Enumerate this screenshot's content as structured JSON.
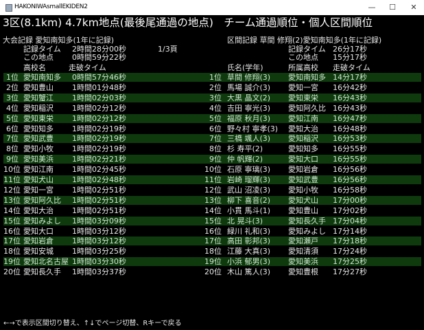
{
  "window": {
    "title": "HAKONIWAsmallEKIDEN2",
    "minimize": "—",
    "maximize": "☐",
    "close": "✕"
  },
  "heading": "3区(8.1km) 4.7km地点(最後尾通過の地点)　チーム通過順位・個人区間順位",
  "meet_record": {
    "label": "大会記録 愛知南知多(1年に記録)",
    "time_label": "記録タイム",
    "time": "2時間28分00秒",
    "point_label": "この地点",
    "point_time": "0時間59分22秒"
  },
  "page": "1/3頁",
  "section_record": {
    "label": "区間記録 草間 修翔(2)愛知南知多(1年に記録)",
    "time_label": "記録タイム",
    "time": "26分17秒",
    "point_label": "この地点",
    "point_time": "15分17秒"
  },
  "headers": {
    "school": "高校名",
    "team_time": "走破タイム",
    "name": "氏名(学年)",
    "affiliation": "所属高校",
    "ind_time": "走破タイム"
  },
  "team_rows": [
    [
      "1位",
      "愛知南知多",
      "0時間57分46秒"
    ],
    [
      "2位",
      "愛知豊山",
      "1時間01分48秒"
    ],
    [
      "3位",
      "愛知蟹江",
      "1時間02分03秒"
    ],
    [
      "4位",
      "愛知稲沢",
      "1時間02分12秒"
    ],
    [
      "5位",
      "愛知東栄",
      "1時間02分12秒"
    ],
    [
      "6位",
      "愛知知多",
      "1時間02分19秒"
    ],
    [
      "7位",
      "愛知武豊",
      "1時間02分19秒"
    ],
    [
      "8位",
      "愛知小牧",
      "1時間02分19秒"
    ],
    [
      "9位",
      "愛知美浜",
      "1時間02分21秒"
    ],
    [
      "10位",
      "愛知江南",
      "1時間02分45秒"
    ],
    [
      "11位",
      "愛知犬山",
      "1時間02分48秒"
    ],
    [
      "12位",
      "愛知一宮",
      "1時間02分51秒"
    ],
    [
      "13位",
      "愛知阿久比",
      "1時間02分51秒"
    ],
    [
      "14位",
      "愛知大治",
      "1時間02分51秒"
    ],
    [
      "15位",
      "愛知みよし",
      "1時間03分09秒"
    ],
    [
      "16位",
      "愛知大口",
      "1時間03分12秒"
    ],
    [
      "17位",
      "愛知岩倉",
      "1時間03分12秒"
    ],
    [
      "18位",
      "愛知安城",
      "1時間03分25秒"
    ],
    [
      "19位",
      "愛知北名古屋",
      "1時間03分30秒"
    ],
    [
      "20位",
      "愛知長久手",
      "1時間03分37秒"
    ]
  ],
  "individual_rows": [
    [
      "1位",
      "草間 修翔(3)",
      "愛知南知多",
      "14分17秒"
    ],
    [
      "2位",
      "馬場 誠介(3)",
      "愛知一宮",
      "16分42秒"
    ],
    [
      "3位",
      "大黒 晶文(2)",
      "愛知東栄",
      "16分43秒"
    ],
    [
      "4位",
      "吉田 寧光(3)",
      "愛知阿久比",
      "16分43秒"
    ],
    [
      "5位",
      "福原 秋月(3)",
      "愛知江南",
      "16分47秒"
    ],
    [
      "6位",
      "野々村 寧孝(3)",
      "愛知大治",
      "16分48秒"
    ],
    [
      "7位",
      "三橋 颯人(3)",
      "愛知稲沢",
      "16分53秒"
    ],
    [
      "8位",
      "杉 寿平(2)",
      "愛知知多",
      "16分55秒"
    ],
    [
      "9位",
      "仲 帆輝(2)",
      "愛知大口",
      "16分55秒"
    ],
    [
      "10位",
      "石原 寧璃(3)",
      "愛知岩倉",
      "16分56秒"
    ],
    [
      "11位",
      "岩崎 瑠輝(3)",
      "愛知武豊",
      "16分56秒"
    ],
    [
      "12位",
      "武山 沼凌(3)",
      "愛知小牧",
      "16分58秒"
    ],
    [
      "13位",
      "柳下 喜音(2)",
      "愛知犬山",
      "17分00秒"
    ],
    [
      "14位",
      "小貫 馬斗(1)",
      "愛知豊山",
      "17分02秒"
    ],
    [
      "15位",
      "北 晃斗(3)",
      "愛知長久手",
      "17分04秒"
    ],
    [
      "16位",
      "緑川 礼和(3)",
      "愛知みよし",
      "17分14秒"
    ],
    [
      "17位",
      "高田 彰邦(3)",
      "愛知瀬戸",
      "17分18秒"
    ],
    [
      "18位",
      "江藤 大真(3)",
      "愛知清須",
      "17分24秒"
    ],
    [
      "19位",
      "小浜 郁男(3)",
      "愛知美浜",
      "17分25秒"
    ],
    [
      "20位",
      "木山 篤人(3)",
      "愛知豊根",
      "17分27秒"
    ]
  ],
  "footer": "←→で表示区間切り替え、↑↓でページ切替、Rキーで戻る",
  "colors": {
    "background": "#000000",
    "highlight_row": "#0e3a0e",
    "text": "#e8e8e8"
  }
}
